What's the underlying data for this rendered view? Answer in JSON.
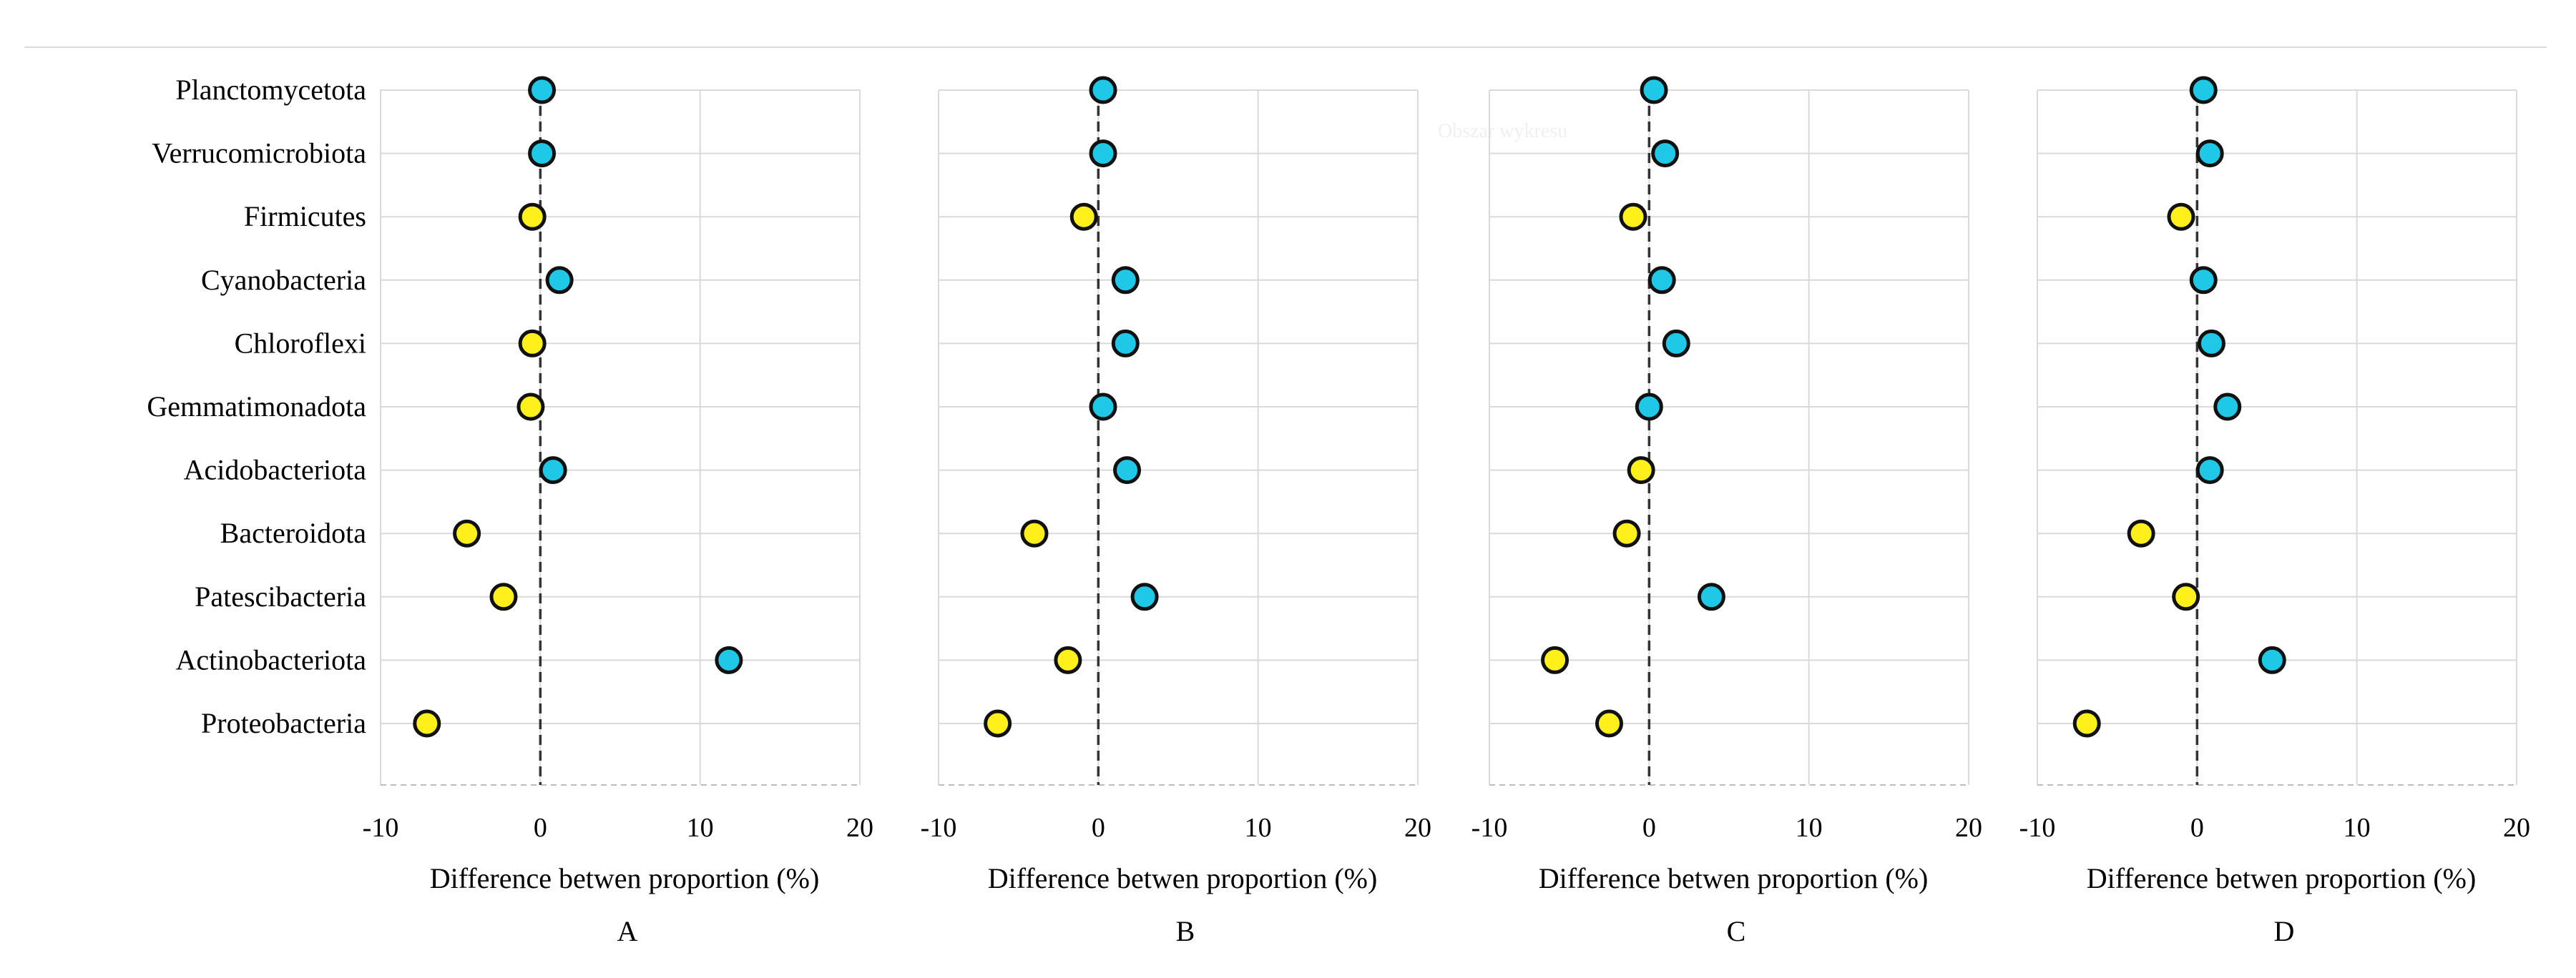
{
  "figure": {
    "watermark": "Obszar wykresu"
  },
  "colors": {
    "positive": "#1ec8e6",
    "negative": "#ffef1a",
    "marker_stroke": "#111111",
    "gridline": "#d9d9d9",
    "zero_line": "#333333"
  },
  "chart_data": [
    {
      "type": "scatter",
      "panel_label": "A",
      "xlabel": "Difference betwen proportion (%)",
      "xlim": [
        -10,
        20
      ],
      "xticks": [
        -10,
        0,
        10,
        20
      ],
      "categories": [
        "Planctomycetota",
        "Verrucomicrobiota",
        "Firmicutes",
        "Cyanobacteria",
        "Chloroflexi",
        "Gemmatimonadota",
        "Acidobacteriota",
        "Bacteroidota",
        "Patescibacteria",
        "Actinobacteriota",
        "Proteobacteria"
      ],
      "values": [
        0.1,
        0.1,
        -0.5,
        1.2,
        -0.5,
        -0.6,
        0.8,
        -4.6,
        -2.3,
        11.8,
        -7.1
      ]
    },
    {
      "type": "scatter",
      "panel_label": "B",
      "xlabel": "Difference betwen proportion (%)",
      "xlim": [
        -10,
        20
      ],
      "xticks": [
        -10,
        0,
        10,
        20
      ],
      "categories": [
        "Planctomycetota",
        "Verrucomicrobiota",
        "Firmicutes",
        "Cyanobacteria",
        "Chloroflexi",
        "Gemmatimonadota",
        "Acidobacteriota",
        "Bacteroidota",
        "Patescibacteria",
        "Actinobacteriota",
        "Proteobacteria"
      ],
      "values": [
        0.3,
        0.3,
        -0.9,
        1.7,
        1.7,
        0.3,
        1.8,
        -4.0,
        2.9,
        -1.9,
        -6.3
      ]
    },
    {
      "type": "scatter",
      "panel_label": "C",
      "xlabel": "Difference betwen proportion (%)",
      "xlim": [
        -10,
        20
      ],
      "xticks": [
        -10,
        0,
        10,
        20
      ],
      "categories": [
        "Planctomycetota",
        "Verrucomicrobiota",
        "Firmicutes",
        "Cyanobacteria",
        "Chloroflexi",
        "Gemmatimonadota",
        "Acidobacteriota",
        "Bacteroidota",
        "Patescibacteria",
        "Actinobacteriota",
        "Proteobacteria"
      ],
      "values": [
        0.3,
        1.0,
        -1.0,
        0.8,
        1.7,
        0.0,
        -0.5,
        -1.4,
        3.9,
        -5.9,
        -2.5
      ]
    },
    {
      "type": "scatter",
      "panel_label": "D",
      "xlabel": "Difference betwen proportion (%)",
      "xlim": [
        -10,
        20
      ],
      "xticks": [
        -10,
        0,
        10,
        20
      ],
      "categories": [
        "Planctomycetota",
        "Verrucomicrobiota",
        "Firmicutes",
        "Cyanobacteria",
        "Chloroflexi",
        "Gemmatimonadota",
        "Acidobacteriota",
        "Bacteroidota",
        "Patescibacteria",
        "Actinobacteriota",
        "Proteobacteria"
      ],
      "values": [
        0.4,
        0.8,
        -1.0,
        0.4,
        0.9,
        1.9,
        0.8,
        -3.5,
        -0.7,
        4.7,
        -6.9
      ]
    }
  ]
}
